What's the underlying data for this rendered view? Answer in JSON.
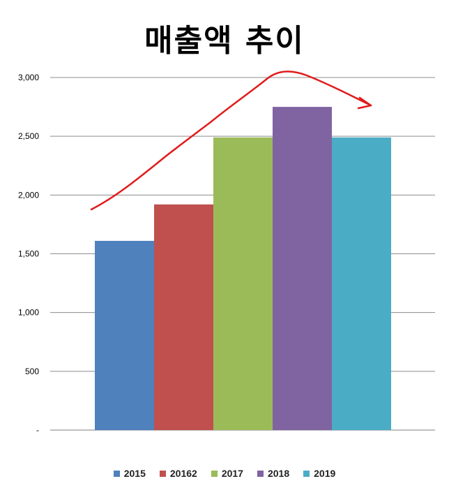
{
  "chart_data": {
    "type": "bar",
    "title": "매출액 추이",
    "xlabel": "",
    "ylabel": "",
    "categories": [
      "2015",
      "20162",
      "2017",
      "2018",
      "2019"
    ],
    "values": [
      1610,
      1920,
      2490,
      2750,
      2490
    ],
    "colors": [
      "#4f81bd",
      "#c0504d",
      "#9bbb59",
      "#8064a2",
      "#4bacc6"
    ],
    "ylim": [
      0,
      3000
    ],
    "yticks": [
      {
        "value": 0,
        "label": "-"
      },
      {
        "value": 500,
        "label": "500"
      },
      {
        "value": 1000,
        "label": "1,000"
      },
      {
        "value": 1500,
        "label": "1,500"
      },
      {
        "value": 2000,
        "label": "2,000"
      },
      {
        "value": 2500,
        "label": "2,500"
      },
      {
        "value": 3000,
        "label": "3,000"
      }
    ],
    "grid": true,
    "legend_position": "bottom",
    "annotation": {
      "type": "hand-drawn trend arrow",
      "color": "#e01b1b"
    }
  }
}
